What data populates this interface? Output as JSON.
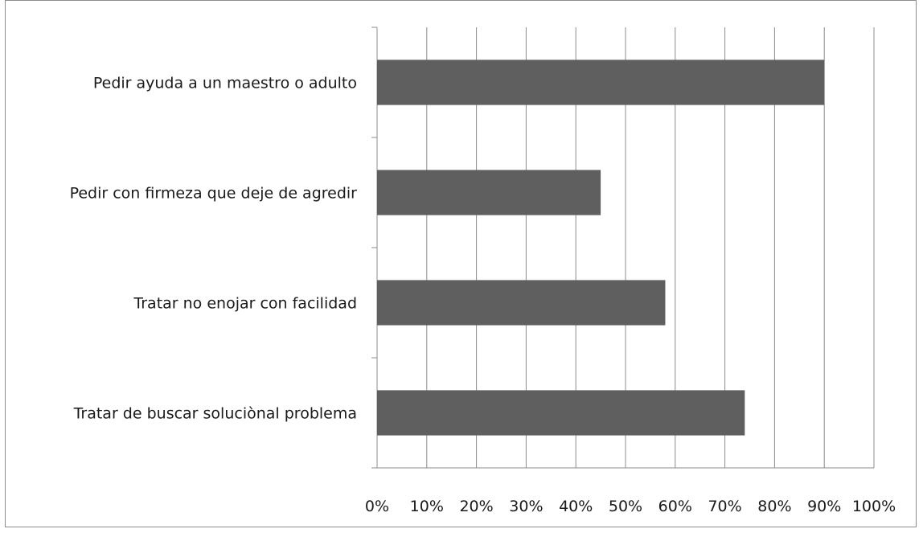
{
  "chart_data": {
    "type": "bar",
    "orientation": "horizontal",
    "title": "",
    "categories": [
      "Pedir ayuda a un maestro o adulto",
      "Pedir con firmeza que deje de agredir",
      "Tratar no enojar con facilidad",
      "Tratar de buscar soluciònal problema"
    ],
    "values": [
      0.9,
      0.45,
      0.58,
      0.74
    ],
    "xlim": [
      0,
      1
    ],
    "xticks": [
      "0%",
      "10%",
      "20%",
      "30%",
      "40%",
      "50%",
      "60%",
      "70%",
      "80%",
      "90%",
      "100%"
    ],
    "xlabel": "",
    "ylabel": "",
    "grid": "vertical",
    "legend": "none",
    "bar_color": "#5f5f5f",
    "grid_color": "#8c8c8c"
  }
}
